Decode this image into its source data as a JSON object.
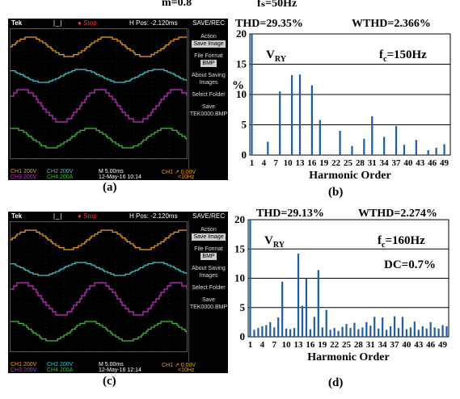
{
  "header": {
    "modulation": "m=0.8",
    "fs": "fₛ=50Hz"
  },
  "scope_a": {
    "brand": "Tek",
    "status": "Stop",
    "hpos": "H Pos: -2.120ms",
    "menu_title": "SAVE/REC",
    "menu": [
      "Action",
      "Save Image",
      "File Format",
      "BMP",
      "About Saving Images",
      "Select Folder",
      "Save TEK0000.BMP"
    ],
    "ch_row1": [
      "CH1 200V",
      "CH2 200V",
      "M 5.00ms",
      "CH1 ↗ 0.00V"
    ],
    "ch_row2": [
      "CH3 200V",
      "CH4 200A",
      "12-May-16 10:14",
      "<10Hz"
    ],
    "label": "(a)"
  },
  "scope_c": {
    "brand": "Tek",
    "status": "Stop",
    "hpos": "H Pos: -2.120ms",
    "menu_title": "SAVE/REC",
    "menu": [
      "Action",
      "Save Image",
      "File Format",
      "BMP",
      "About Saving Images",
      "Select Folder",
      "Save TEK0000.BMP"
    ],
    "ch_row1": [
      "CH1 200V",
      "CH2 200V",
      "M 5.00ms",
      "CH1 ↗ 0.00V"
    ],
    "ch_row2": [
      "CH3 200V",
      "CH4 200A",
      "12-May-16 12:14",
      "<10Hz"
    ],
    "label": "(c)"
  },
  "chart_b": {
    "thd": "THD=29.35%",
    "wthd": "WTHD=2.366%",
    "label": "(b)"
  },
  "chart_d": {
    "thd": "THD=29.13%",
    "wthd": "WTHD=2.274%",
    "dc": "DC=0.7%",
    "label": "(d)"
  },
  "colors": {
    "ch1": "#f0a020",
    "ch2": "#40c8c8",
    "ch3": "#d030d0",
    "ch4": "#40c040",
    "bar": "#1f5fa0"
  },
  "chart_data": [
    {
      "type": "bar",
      "ylabel": "%",
      "xlabel": "Harmonic Order",
      "series_label": "V_RY",
      "fc": "f_c=150Hz",
      "ylim": [
        0,
        20
      ],
      "yticks": [
        0,
        5,
        10,
        15,
        20
      ],
      "xticks": [
        1,
        4,
        7,
        10,
        13,
        16,
        19,
        22,
        25,
        28,
        31,
        34,
        37,
        40,
        43,
        46,
        49
      ],
      "x": [
        1,
        5,
        8,
        11,
        13,
        16,
        18,
        23,
        26,
        29,
        31,
        34,
        37,
        39,
        42,
        45,
        47,
        49
      ],
      "values": [
        20,
        2.2,
        10.5,
        13.2,
        13.3,
        11.5,
        5.8,
        4.0,
        1.5,
        2.7,
        6.4,
        3.0,
        4.8,
        1.7,
        2.5,
        0.8,
        1.2,
        1.8
      ]
    },
    {
      "type": "bar",
      "xlabel": "Harmonic Order",
      "series_label": "V_RY",
      "fc": "f_c=160Hz",
      "ylim": [
        0,
        20
      ],
      "yticks": [
        0,
        5,
        10,
        15,
        20
      ],
      "xticks": [
        1,
        4,
        7,
        10,
        13,
        16,
        19,
        22,
        25,
        28,
        31,
        34,
        37,
        40,
        43,
        46,
        49
      ],
      "x": [
        1,
        2,
        3,
        4,
        5,
        6,
        7,
        8,
        9,
        10,
        11,
        12,
        13,
        14,
        15,
        16,
        17,
        18,
        19,
        20,
        21,
        22,
        23,
        24,
        25,
        26,
        27,
        28,
        29,
        30,
        31,
        32,
        33,
        34,
        35,
        36,
        37,
        38,
        39,
        40,
        41,
        42,
        43,
        44,
        45,
        46,
        47,
        48,
        49,
        50
      ],
      "values": [
        20,
        1.2,
        1.5,
        1.8,
        2.0,
        2.5,
        1.6,
        3.3,
        9.4,
        1.4,
        1.3,
        1.5,
        14.2,
        5.3,
        10.0,
        1.3,
        3.4,
        11.4,
        1.6,
        4.6,
        1.2,
        1.5,
        1.0,
        1.7,
        2.2,
        1.5,
        2.4,
        1.3,
        1.6,
        2.5,
        1.9,
        3.4,
        1.4,
        3.3,
        1.2,
        1.8,
        3.5,
        1.5,
        3.4,
        1.3,
        1.6,
        2.6,
        1.2,
        1.8,
        1.4,
        2.5,
        1.6,
        1.4,
        2.0,
        1.8
      ]
    }
  ]
}
